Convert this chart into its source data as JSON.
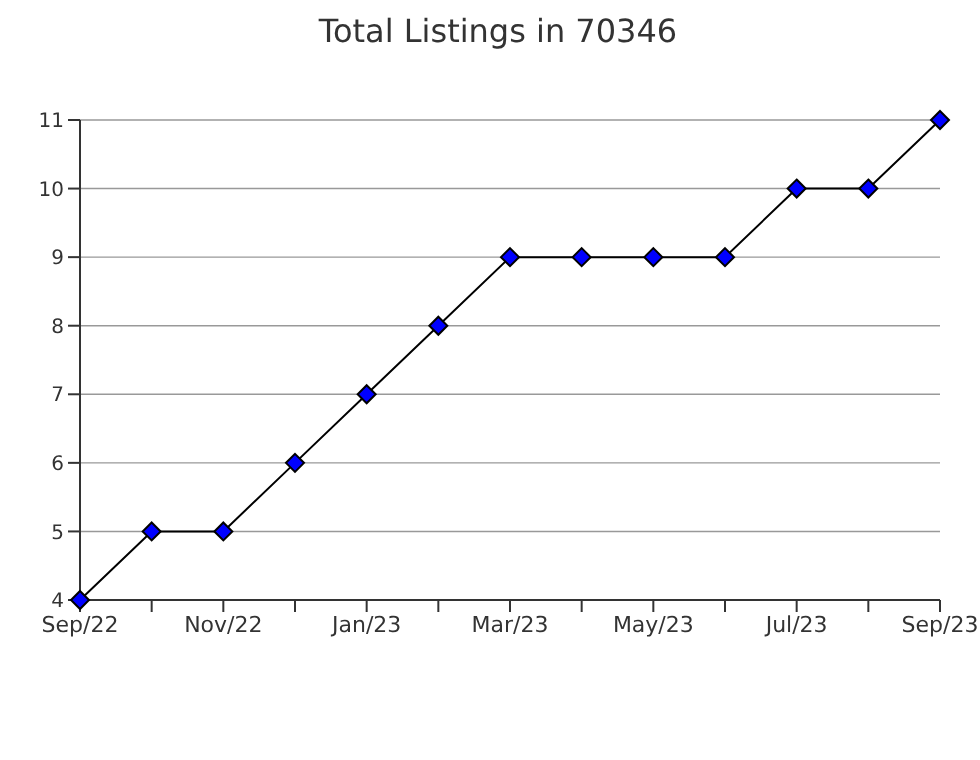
{
  "chart_data": {
    "type": "line",
    "title": "Total Listings in 70346",
    "categories": [
      "Sep/22",
      null,
      "Nov/22",
      null,
      "Jan/23",
      null,
      "Mar/23",
      null,
      "May/23",
      null,
      "Jul/23",
      null,
      "Sep/23"
    ],
    "series": [
      {
        "color": "#0000ff",
        "values": [
          4,
          5,
          5,
          6,
          7,
          8,
          9,
          9,
          9,
          9,
          10,
          10,
          11
        ]
      }
    ],
    "ylim": [
      4,
      11
    ],
    "yticks": [
      4,
      5,
      6,
      7,
      8,
      9,
      10,
      11
    ],
    "grid": "y",
    "legend": false,
    "marker": "diamond",
    "line_style": "solid"
  }
}
